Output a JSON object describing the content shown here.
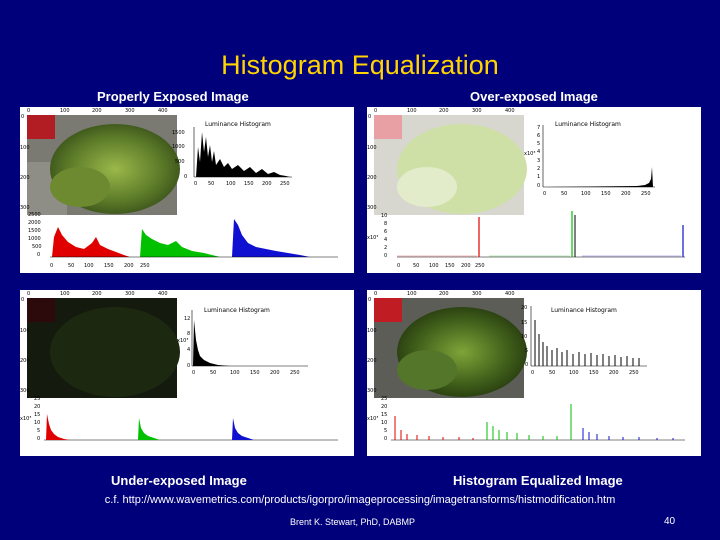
{
  "slide": {
    "title": "Histogram Equalization",
    "labels": {
      "proper": "Properly Exposed Image",
      "over": "Over-exposed Image",
      "under": "Under-exposed Image",
      "equalized": "Histogram Equalized Image"
    },
    "reference": "c.f. http://www.wavemetrics.com/products/igorpro/imageprocessing/imagetransforms/histmodification.htm",
    "author": "Brent K. Stewart, PhD, DABMP",
    "page_number": "40"
  },
  "panels": {
    "proper": {
      "luminance_title": "Luminance Histogram",
      "img_x_ticks": [
        "0",
        "100",
        "200",
        "300",
        "400"
      ],
      "img_y_ticks": [
        "0",
        "100",
        "200",
        "300"
      ],
      "lum_y_ticks": [
        "1500",
        "1000",
        "500",
        "0"
      ],
      "lum_x_ticks": [
        "0",
        "50",
        "100",
        "150",
        "200",
        "250"
      ],
      "rgb_y_ticks": [
        "2500",
        "2000",
        "1500",
        "1000",
        "500",
        "0"
      ],
      "rgb_x_ticks": [
        "0",
        "50",
        "100",
        "150",
        "200",
        "250"
      ]
    },
    "over": {
      "luminance_title": "Luminance Histogram",
      "img_x_ticks": [
        "0",
        "100",
        "200",
        "300",
        "400"
      ],
      "img_y_ticks": [
        "0",
        "100",
        "200",
        "300"
      ],
      "lum_y_ticks": [
        "7",
        "6",
        "5",
        "4",
        "3",
        "2",
        "1",
        "0"
      ],
      "lum_x_ticks": [
        "0",
        "50",
        "100",
        "150",
        "200",
        "250"
      ],
      "lum_y_unit": "x10³",
      "rgb_y_ticks": [
        "10",
        "8",
        "6",
        "4",
        "2",
        "0"
      ],
      "rgb_x_ticks": [
        "0",
        "50",
        "100",
        "150",
        "200",
        "250"
      ],
      "rgb_y_unit": "x10³"
    },
    "under": {
      "luminance_title": "Luminance Histogram",
      "img_x_ticks": [
        "0",
        "100",
        "200",
        "300",
        "400"
      ],
      "img_y_ticks": [
        "0",
        "100",
        "200",
        "300"
      ],
      "lum_y_ticks": [
        "12",
        "8",
        "4",
        "0"
      ],
      "lum_x_ticks": [
        "0",
        "50",
        "100",
        "150",
        "200",
        "250"
      ],
      "lum_y_unit": "x10³",
      "rgb_y_ticks": [
        "25",
        "20",
        "15",
        "10",
        "5",
        "0"
      ],
      "rgb_y_unit": "x10³"
    },
    "equalized": {
      "luminance_title": "Luminance Histogram",
      "img_x_ticks": [
        "0",
        "100",
        "200",
        "300",
        "400"
      ],
      "img_y_ticks": [
        "0",
        "100",
        "200",
        "300"
      ],
      "lum_y_ticks": [
        "20",
        "15",
        "10",
        "5",
        "0"
      ],
      "lum_x_ticks": [
        "0",
        "50",
        "100",
        "150",
        "200",
        "250"
      ],
      "rgb_y_ticks": [
        "25",
        "20",
        "15",
        "10",
        "5",
        "0"
      ],
      "rgb_y_unit": "x10³"
    }
  },
  "colors": {
    "background": "#00007a",
    "title": "#ffd400",
    "red_channel": "#e00000",
    "green_channel": "#00c000",
    "blue_channel": "#1010d0"
  }
}
